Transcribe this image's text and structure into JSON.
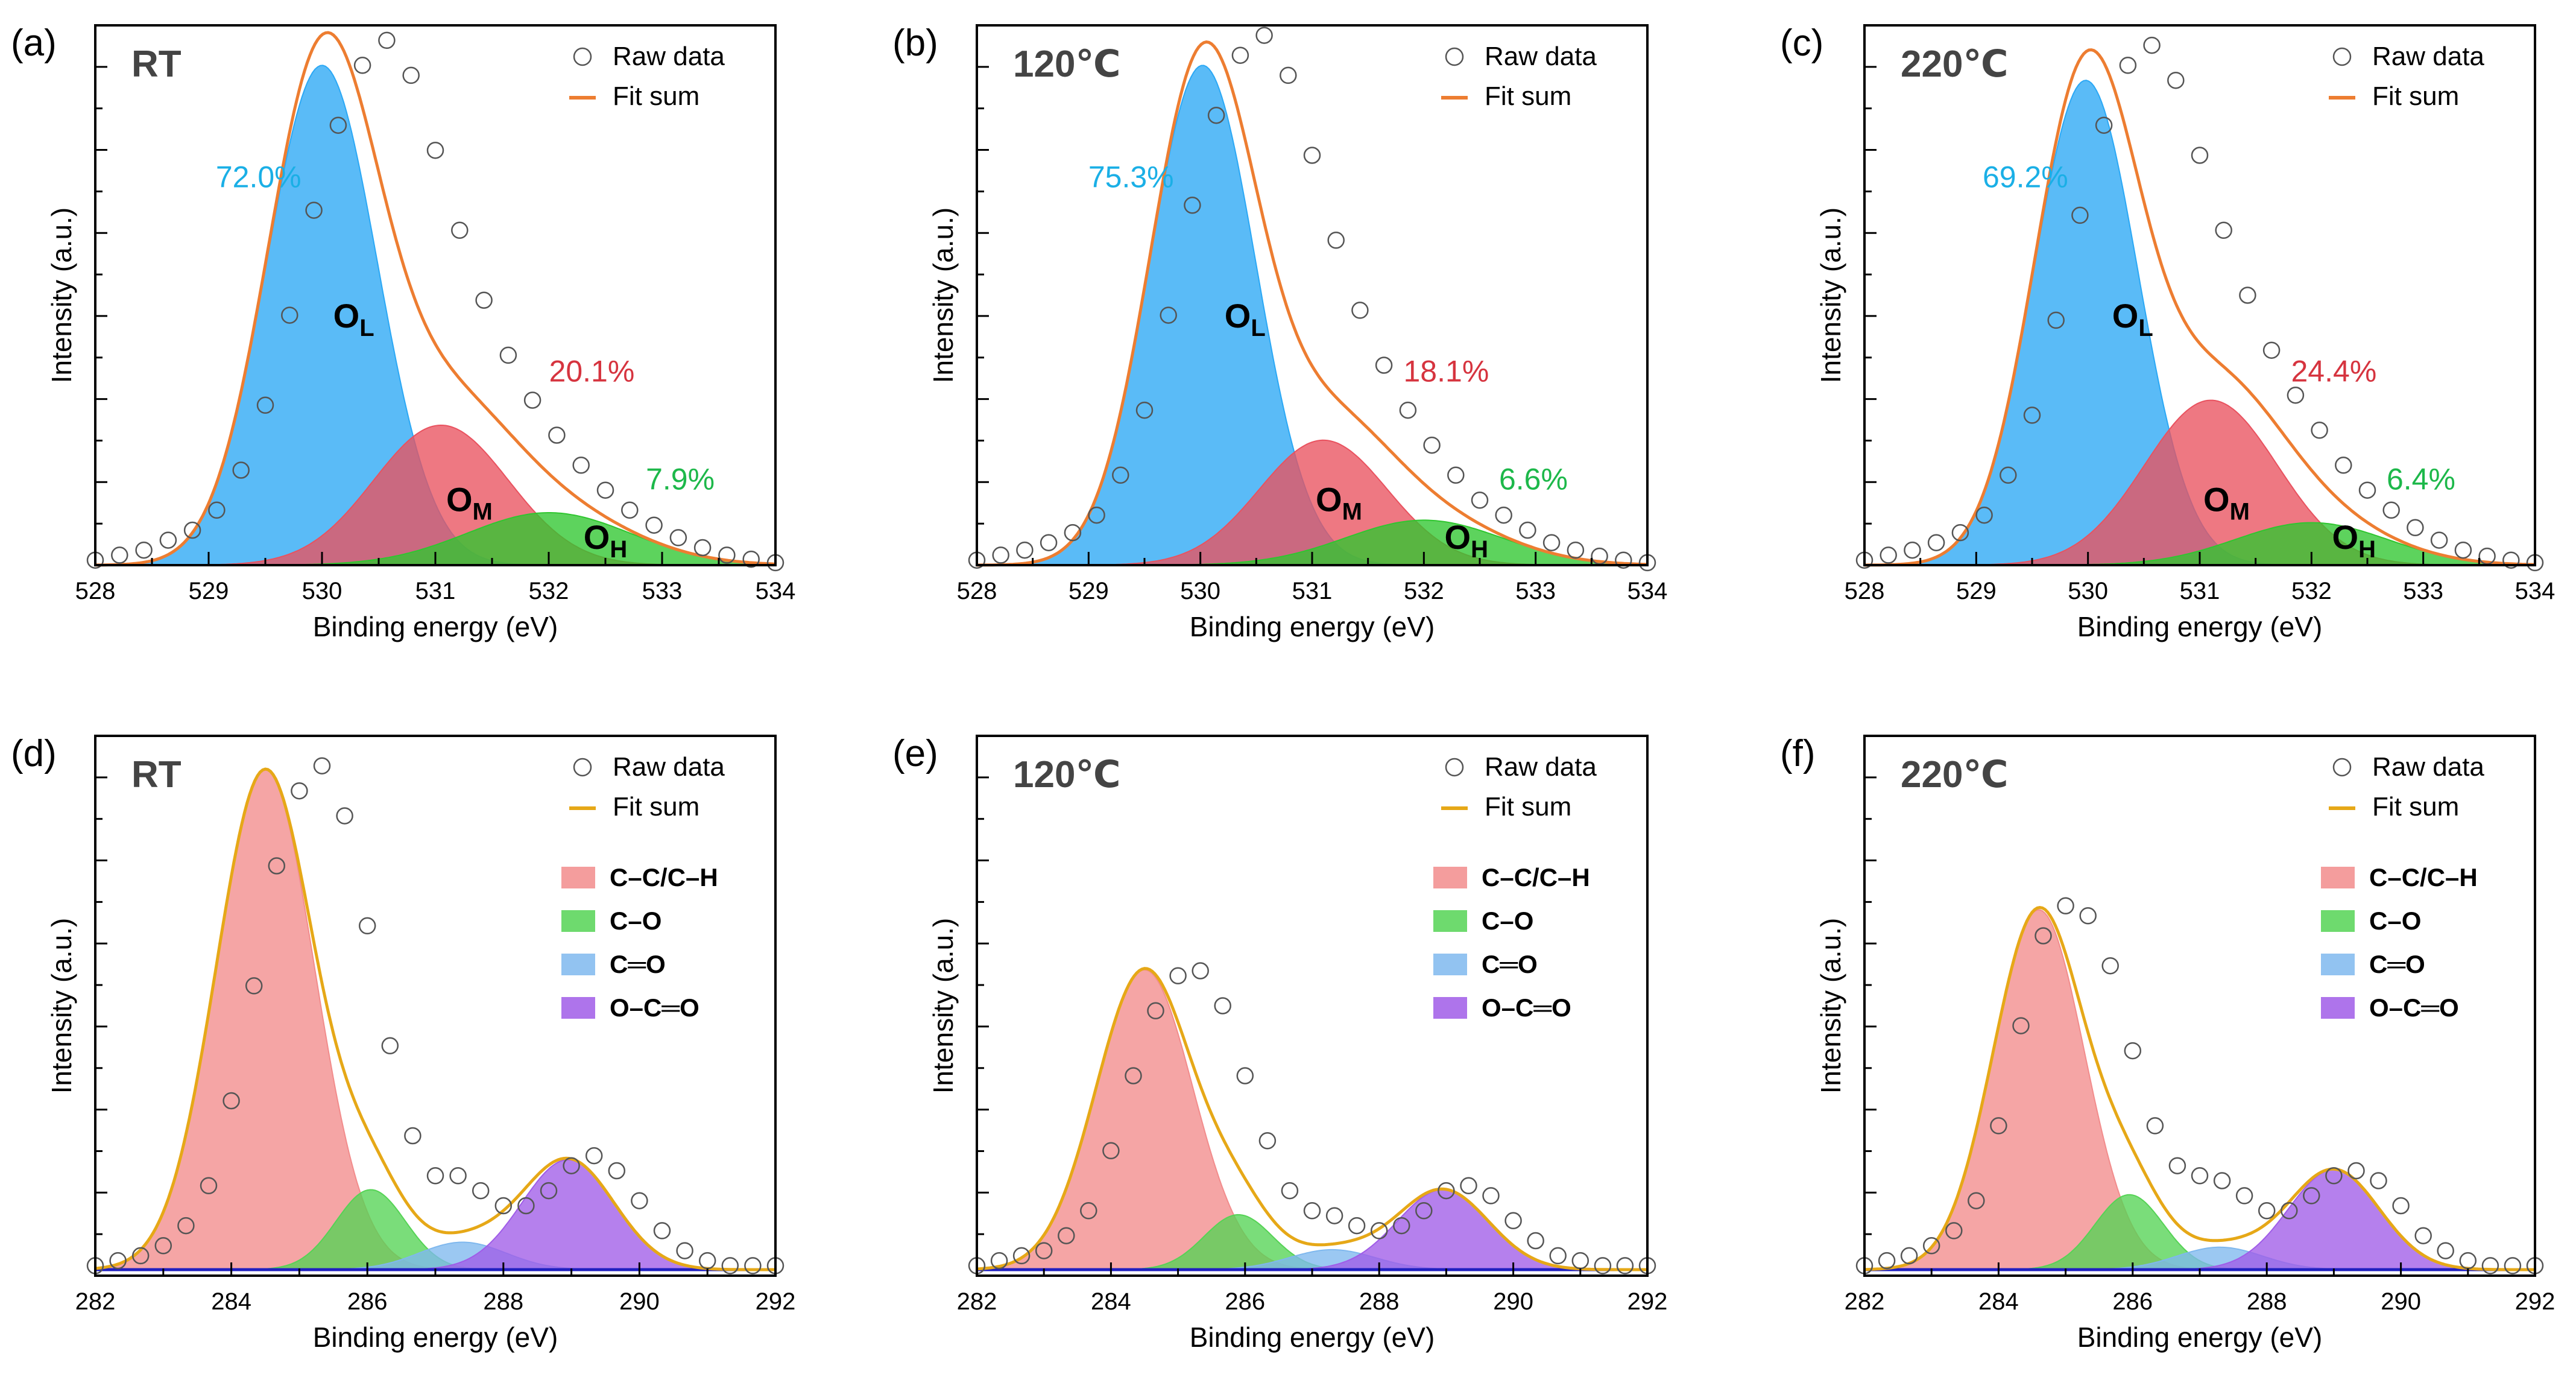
{
  "colors": {
    "axis": "#000000",
    "raw_marker": "#555555",
    "fit_line": "#ED7D31",
    "fit_line_c": "#E6A817",
    "OL": "#2BA8F5",
    "OM": "#E9525F",
    "OH": "#2FC62F",
    "CC": "#F28C8C",
    "CO": "#55D355",
    "C2O": "#7FB8EE",
    "OCO": "#A05CE8",
    "baseline_c": "#2020C0",
    "pct_OL": "#1AAFE6",
    "pct_OM": "#D6343F",
    "pct_OH": "#1DB84A",
    "condition_label": "#444444"
  },
  "legend": {
    "raw": "Raw data",
    "fit": "Fit sum"
  },
  "chart_data": [
    {
      "panel": "(a)",
      "condition": "RT",
      "type": "area",
      "xlabel": "Binding energy (eV)",
      "ylabel": "Intensity (a.u.)",
      "xlim": [
        528,
        534
      ],
      "ylim": [
        0,
        1.08
      ],
      "xticks": [
        "528",
        "529",
        "530",
        "531",
        "532",
        "533",
        "534"
      ],
      "components": [
        {
          "name": "O_L",
          "label_main": "O",
          "label_sub": "L",
          "center": 530.0,
          "height": 1.0,
          "fwhm": 1.15,
          "color_key": "OL",
          "percent": "72.0%",
          "pct_color_key": "pct_OL"
        },
        {
          "name": "O_M",
          "label_main": "O",
          "label_sub": "M",
          "center": 531.05,
          "height": 0.28,
          "fwhm": 1.4,
          "color_key": "OM",
          "percent": "20.1%",
          "pct_color_key": "pct_OM"
        },
        {
          "name": "O_H",
          "label_main": "O",
          "label_sub": "H",
          "center": 532.0,
          "height": 0.105,
          "fwhm": 1.7,
          "color_key": "OH",
          "percent": "7.9%",
          "pct_color_key": "pct_OH"
        }
      ],
      "raw_points": [
        0.01,
        0.02,
        0.03,
        0.05,
        0.07,
        0.11,
        0.19,
        0.32,
        0.5,
        0.71,
        0.88,
        1.0,
        1.05,
        0.98,
        0.83,
        0.67,
        0.53,
        0.42,
        0.33,
        0.26,
        0.2,
        0.15,
        0.11,
        0.08,
        0.055,
        0.035,
        0.02,
        0.012,
        0.005
      ]
    },
    {
      "panel": "(b)",
      "condition": "120℃",
      "type": "area",
      "xlabel": "Binding energy (eV)",
      "ylabel": "Intensity (a.u.)",
      "xlim": [
        528,
        534
      ],
      "ylim": [
        0,
        1.08
      ],
      "xticks": [
        "528",
        "529",
        "530",
        "531",
        "532",
        "533",
        "534"
      ],
      "components": [
        {
          "name": "O_L",
          "label_main": "O",
          "label_sub": "L",
          "center": 530.02,
          "height": 1.0,
          "fwhm": 1.12,
          "color_key": "OL",
          "percent": "75.3%",
          "pct_color_key": "pct_OL"
        },
        {
          "name": "O_M",
          "label_main": "O",
          "label_sub": "M",
          "center": 531.1,
          "height": 0.25,
          "fwhm": 1.35,
          "color_key": "OM",
          "percent": "18.1%",
          "pct_color_key": "pct_OM"
        },
        {
          "name": "O_H",
          "label_main": "O",
          "label_sub": "H",
          "center": 532.0,
          "height": 0.09,
          "fwhm": 1.65,
          "color_key": "OH",
          "percent": "6.6%",
          "pct_color_key": "pct_OH"
        }
      ],
      "raw_points": [
        0.01,
        0.02,
        0.03,
        0.045,
        0.065,
        0.1,
        0.18,
        0.31,
        0.5,
        0.72,
        0.9,
        1.02,
        1.06,
        0.98,
        0.82,
        0.65,
        0.51,
        0.4,
        0.31,
        0.24,
        0.18,
        0.13,
        0.1,
        0.07,
        0.045,
        0.03,
        0.018,
        0.01,
        0.005
      ]
    },
    {
      "panel": "(c)",
      "condition": "220℃",
      "type": "area",
      "xlabel": "Binding energy (eV)",
      "ylabel": "Intensity (a.u.)",
      "xlim": [
        528,
        534
      ],
      "ylim": [
        0,
        1.08
      ],
      "xticks": [
        "528",
        "529",
        "530",
        "531",
        "532",
        "533",
        "534"
      ],
      "components": [
        {
          "name": "O_L",
          "label_main": "O",
          "label_sub": "L",
          "center": 529.98,
          "height": 0.97,
          "fwhm": 1.1,
          "color_key": "OL",
          "percent": "69.2%",
          "pct_color_key": "pct_OL"
        },
        {
          "name": "O_M",
          "label_main": "O",
          "label_sub": "M",
          "center": 531.1,
          "height": 0.33,
          "fwhm": 1.4,
          "color_key": "OM",
          "percent": "24.4%",
          "pct_color_key": "pct_OM"
        },
        {
          "name": "O_H",
          "label_main": "O",
          "label_sub": "H",
          "center": 532.0,
          "height": 0.085,
          "fwhm": 1.6,
          "color_key": "OH",
          "percent": "6.4%",
          "pct_color_key": "pct_OH"
        }
      ],
      "raw_points": [
        0.01,
        0.02,
        0.03,
        0.045,
        0.065,
        0.1,
        0.18,
        0.3,
        0.49,
        0.7,
        0.88,
        1.0,
        1.04,
        0.97,
        0.82,
        0.67,
        0.54,
        0.43,
        0.34,
        0.27,
        0.2,
        0.15,
        0.11,
        0.075,
        0.05,
        0.03,
        0.018,
        0.01,
        0.005
      ]
    },
    {
      "panel": "(d)",
      "condition": "RT",
      "type": "area",
      "xlabel": "Binding energy (eV)",
      "ylabel": "Intensity (a.u.)",
      "xlim": [
        282,
        292
      ],
      "ylim": [
        0,
        1.08
      ],
      "xticks": [
        "282",
        "284",
        "286",
        "288",
        "290",
        "292"
      ],
      "components": [
        {
          "name": "C-C/C-H",
          "center": 284.5,
          "height": 1.0,
          "fwhm": 1.7,
          "color_key": "CC"
        },
        {
          "name": "C-O",
          "center": 286.05,
          "height": 0.16,
          "fwhm": 1.2,
          "color_key": "CO"
        },
        {
          "name": "C=O",
          "center": 287.4,
          "height": 0.055,
          "fwhm": 1.5,
          "color_key": "C2O"
        },
        {
          "name": "O-C=O",
          "center": 288.95,
          "height": 0.22,
          "fwhm": 1.6,
          "color_key": "OCO"
        }
      ],
      "legend_labels": [
        "C–C/C–H",
        "C–O",
        "C═O",
        "O–C═O"
      ],
      "raw_points": [
        0.02,
        0.03,
        0.04,
        0.06,
        0.1,
        0.18,
        0.35,
        0.58,
        0.82,
        0.97,
        1.02,
        0.92,
        0.7,
        0.46,
        0.28,
        0.2,
        0.2,
        0.17,
        0.14,
        0.14,
        0.17,
        0.22,
        0.24,
        0.21,
        0.15,
        0.09,
        0.05,
        0.03,
        0.02,
        0.02,
        0.02
      ]
    },
    {
      "panel": "(e)",
      "condition": "120℃",
      "type": "area",
      "xlabel": "Binding energy (eV)",
      "ylabel": "Intensity (a.u.)",
      "xlim": [
        282,
        292
      ],
      "ylim": [
        0,
        1.08
      ],
      "xticks": [
        "282",
        "284",
        "286",
        "288",
        "290",
        "292"
      ],
      "components": [
        {
          "name": "C-C/C-H",
          "center": 284.5,
          "height": 0.6,
          "fwhm": 1.7,
          "color_key": "CC"
        },
        {
          "name": "C-O",
          "center": 285.9,
          "height": 0.11,
          "fwhm": 1.2,
          "color_key": "CO"
        },
        {
          "name": "C=O",
          "center": 287.3,
          "height": 0.04,
          "fwhm": 1.5,
          "color_key": "C2O"
        },
        {
          "name": "O-C=O",
          "center": 288.95,
          "height": 0.16,
          "fwhm": 1.6,
          "color_key": "OCO"
        }
      ],
      "legend_labels": [
        "C–C/C–H",
        "C–O",
        "C═O",
        "O–C═O"
      ],
      "raw_points": [
        0.02,
        0.03,
        0.04,
        0.05,
        0.08,
        0.13,
        0.25,
        0.4,
        0.53,
        0.6,
        0.61,
        0.54,
        0.4,
        0.27,
        0.17,
        0.13,
        0.12,
        0.1,
        0.09,
        0.1,
        0.13,
        0.17,
        0.18,
        0.16,
        0.11,
        0.07,
        0.04,
        0.03,
        0.02,
        0.02,
        0.02
      ]
    },
    {
      "panel": "(f)",
      "condition": "220℃",
      "type": "area",
      "xlabel": "Binding energy (eV)",
      "ylabel": "Intensity (a.u.)",
      "xlim": [
        282,
        292
      ],
      "ylim": [
        0,
        1.08
      ],
      "xticks": [
        "282",
        "284",
        "286",
        "288",
        "290",
        "292"
      ],
      "components": [
        {
          "name": "C-C/C-H",
          "center": 284.6,
          "height": 0.72,
          "fwhm": 1.6,
          "color_key": "CC"
        },
        {
          "name": "C-O",
          "center": 285.95,
          "height": 0.15,
          "fwhm": 1.2,
          "color_key": "CO"
        },
        {
          "name": "C=O",
          "center": 287.3,
          "height": 0.045,
          "fwhm": 1.5,
          "color_key": "C2O"
        },
        {
          "name": "O-C=O",
          "center": 289.0,
          "height": 0.2,
          "fwhm": 1.6,
          "color_key": "OCO"
        }
      ],
      "legend_labels": [
        "C–C/C–H",
        "C–O",
        "C═O",
        "O–C═O"
      ],
      "raw_points": [
        0.02,
        0.03,
        0.04,
        0.06,
        0.09,
        0.15,
        0.3,
        0.5,
        0.68,
        0.74,
        0.72,
        0.62,
        0.45,
        0.3,
        0.22,
        0.2,
        0.19,
        0.16,
        0.13,
        0.13,
        0.16,
        0.2,
        0.21,
        0.19,
        0.14,
        0.08,
        0.05,
        0.03,
        0.02,
        0.02,
        0.02
      ]
    }
  ]
}
